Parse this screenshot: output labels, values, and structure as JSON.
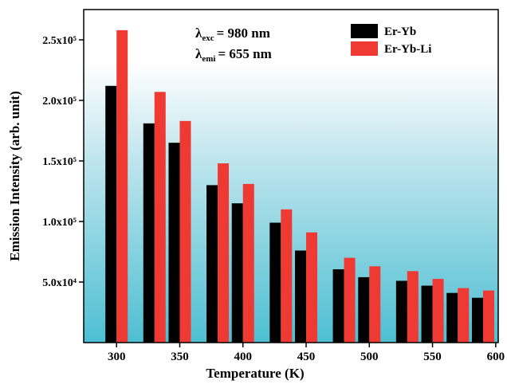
{
  "chart_data": {
    "type": "bar",
    "x_label": "Temperature (K)",
    "y_label": "Emission Intensity (arb. unit)",
    "x": [
      300,
      330,
      350,
      380,
      400,
      430,
      450,
      480,
      500,
      530,
      550,
      570,
      590
    ],
    "series": [
      {
        "name": "Er-Yb",
        "color": "#000000",
        "values": [
          212000,
          181000,
          165000,
          130000,
          115000,
          99000,
          76000,
          60500,
          54000,
          51000,
          47000,
          41000,
          37000
        ]
      },
      {
        "name": "Er-Yb-Li",
        "color": "#ee3a33",
        "values": [
          258000,
          207000,
          183000,
          148000,
          131000,
          110000,
          91000,
          70000,
          63000,
          59000,
          52600,
          45000,
          43000
        ]
      }
    ],
    "xlim": [
      274,
      602
    ],
    "xticks": [
      300,
      350,
      400,
      450,
      500,
      550,
      600
    ],
    "ylim": [
      0,
      275000
    ],
    "yticks": [
      {
        "value": 50000,
        "label": "5.0x10⁴"
      },
      {
        "value": 100000,
        "label": "1.0x10⁵"
      },
      {
        "value": 150000,
        "label": "1.5x10⁵"
      },
      {
        "value": 200000,
        "label": "2.0x10⁵"
      },
      {
        "value": 250000,
        "label": "2.5x10⁵"
      }
    ],
    "annotations": [
      {
        "symbol": "λ",
        "sub": "exc",
        "text": "= 980  nm"
      },
      {
        "symbol": "λ",
        "sub": "emi",
        "text": "= 655 nm"
      }
    ],
    "legend": "upper right"
  }
}
